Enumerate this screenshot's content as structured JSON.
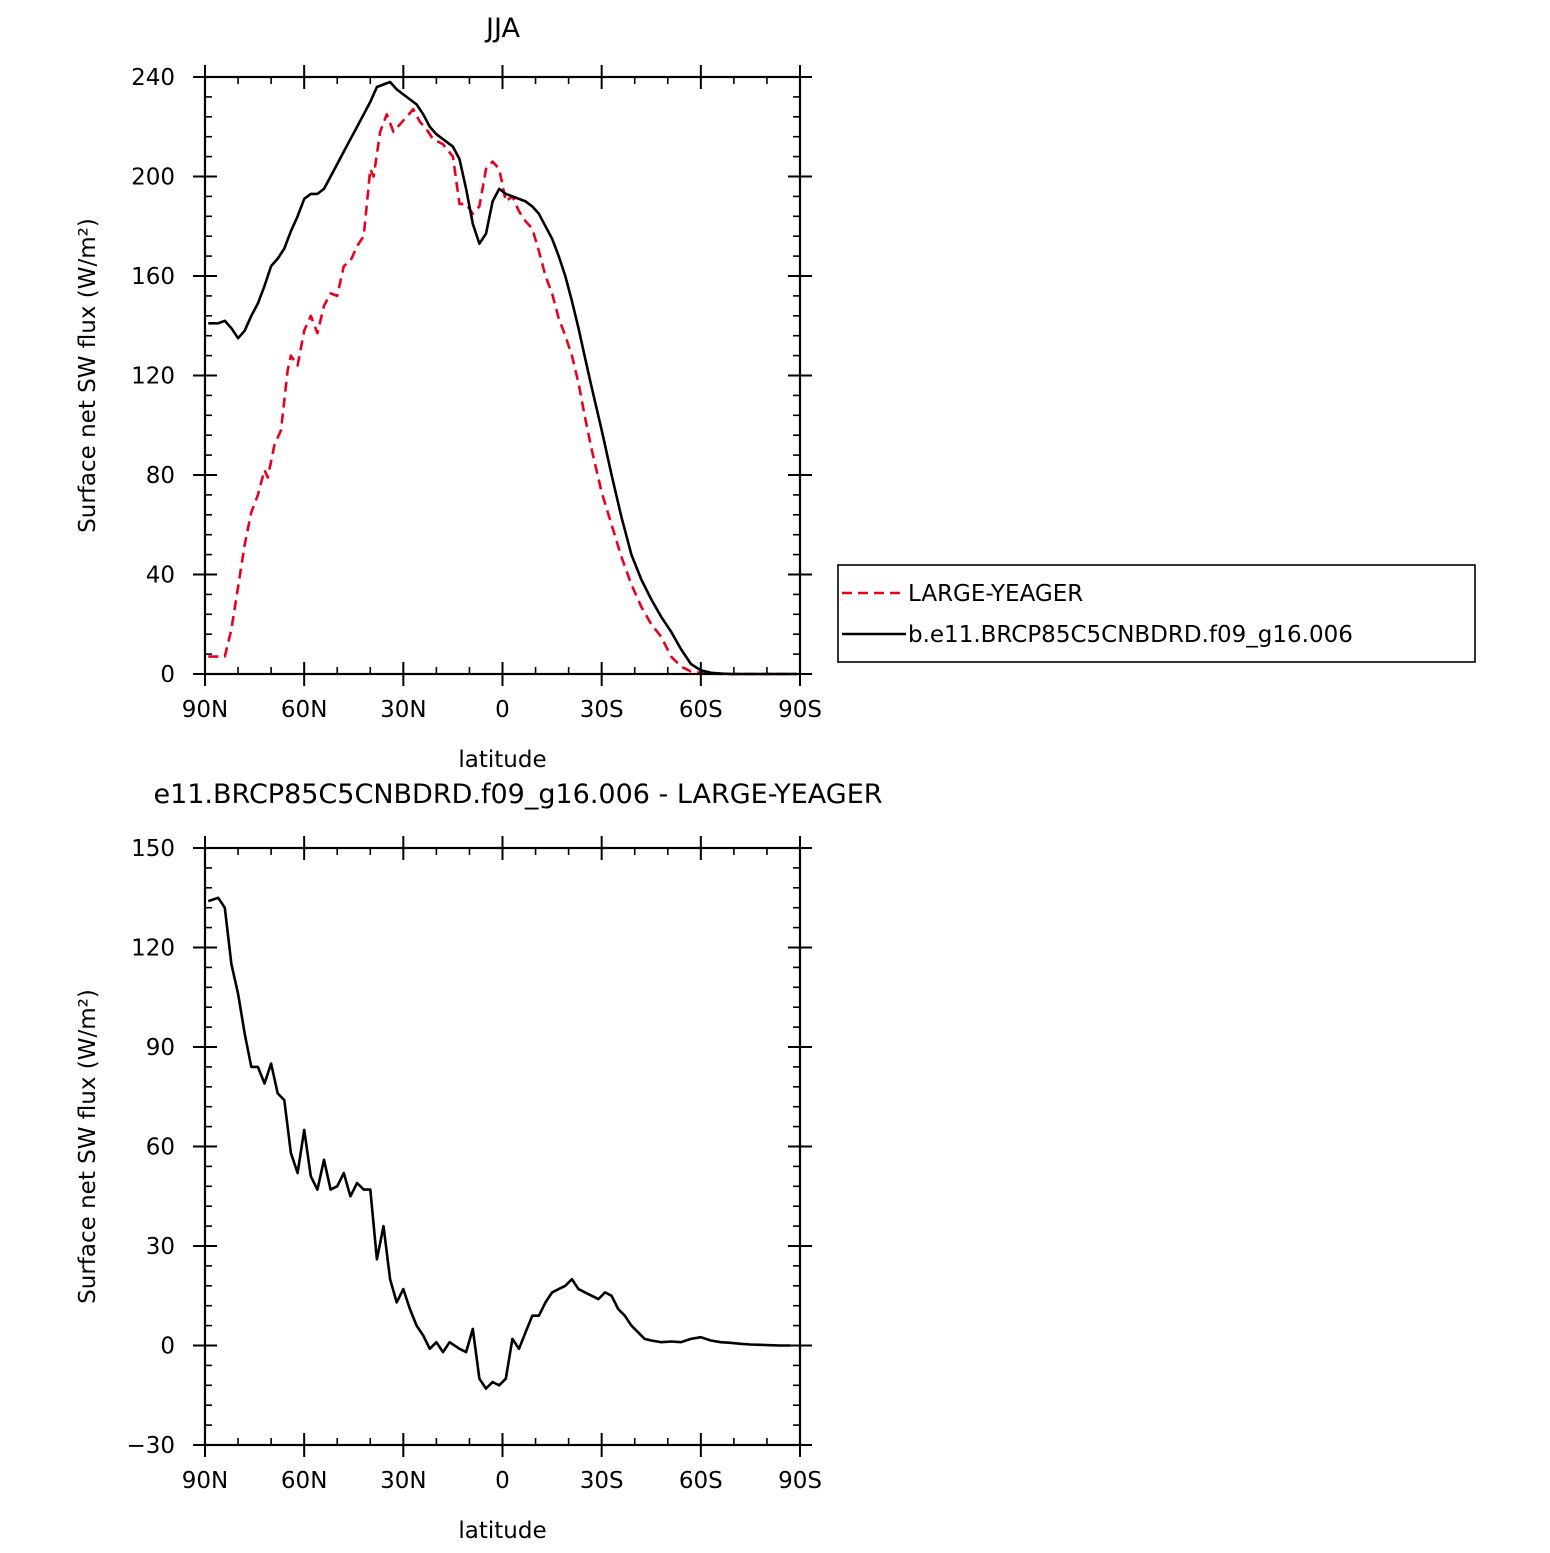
{
  "chart_data": [
    {
      "type": "line",
      "title": "JJA",
      "xlabel": "latitude",
      "ylabel": "Surface net SW flux (W/m²)",
      "xlim": [
        90,
        -90
      ],
      "ylim": [
        0,
        240
      ],
      "x_ticks": [
        90,
        60,
        30,
        0,
        -30,
        -60,
        -90
      ],
      "x_tick_labels": [
        "90N",
        "60N",
        "30N",
        "0",
        "30S",
        "60S",
        "90S"
      ],
      "y_ticks": [
        0,
        40,
        80,
        120,
        160,
        200,
        240
      ],
      "y_tick_labels": [
        "0",
        "40",
        "80",
        "120",
        "160",
        "200",
        "240"
      ],
      "legend_position": "right",
      "series": [
        {
          "name": "LARGE-YEAGER",
          "color": "#e8001c",
          "style": "dashed",
          "x": [
            89,
            86,
            84,
            82,
            80,
            78,
            76,
            74,
            72,
            71,
            69,
            67,
            65,
            64,
            62,
            60,
            58,
            56,
            54,
            52,
            50,
            48,
            46,
            44,
            42,
            40,
            39,
            37,
            35,
            33,
            31,
            29,
            27,
            25,
            23,
            21,
            18,
            15,
            13,
            11,
            9,
            7,
            5,
            3,
            1,
            -1,
            -3,
            -5,
            -7,
            -9,
            -11,
            -13,
            -15,
            -17,
            -19,
            -21,
            -23,
            -25,
            -27,
            -30,
            -33,
            -36,
            -39,
            -42,
            -45,
            -48,
            -51,
            -54,
            -57,
            -60,
            -63,
            -66,
            -69,
            -72,
            -75,
            -78,
            -81,
            -84,
            -87,
            -89
          ],
          "y": [
            7,
            7,
            7,
            18,
            35,
            52,
            65,
            72,
            82,
            79,
            92,
            98,
            122,
            128,
            124,
            138,
            144,
            137,
            148,
            153,
            152,
            164,
            166,
            172,
            176,
            203,
            200,
            218,
            225,
            218,
            221,
            224,
            227,
            222,
            219,
            215,
            213,
            208,
            189,
            189,
            185,
            188,
            203,
            206,
            203,
            190,
            192,
            186,
            182,
            179,
            170,
            160,
            153,
            143,
            136,
            128,
            117,
            103,
            90,
            73,
            60,
            47,
            36,
            27,
            20,
            15,
            7,
            3,
            1,
            0.5,
            0.2,
            0,
            0,
            0,
            0,
            0,
            0,
            0,
            0,
            0
          ]
        },
        {
          "name": "b.e11.BRCP85C5CNBDRD.f09_g16.006",
          "color": "#000000",
          "style": "solid",
          "x": [
            89,
            86,
            84,
            82,
            80,
            78,
            76,
            74,
            72,
            70,
            68,
            66,
            64,
            62,
            60,
            58,
            56,
            54,
            52,
            50,
            48,
            46,
            44,
            42,
            40,
            38,
            36,
            34,
            32,
            30,
            28,
            26,
            24,
            22,
            20,
            18,
            15,
            13,
            11,
            9,
            7,
            5,
            3,
            1,
            -1,
            -3,
            -5,
            -7,
            -9,
            -11,
            -13,
            -15,
            -17,
            -19,
            -21,
            -23,
            -25,
            -27,
            -30,
            -33,
            -36,
            -39,
            -42,
            -45,
            -48,
            -51,
            -54,
            -57,
            -60,
            -63,
            -66,
            -69,
            -72,
            -75,
            -78,
            -81,
            -84,
            -87,
            -89
          ],
          "y": [
            141,
            141,
            142,
            139,
            135,
            138,
            144,
            149,
            156,
            164,
            167,
            171,
            178,
            184,
            191,
            193,
            193,
            195,
            200,
            205,
            210,
            215,
            220,
            225,
            230,
            236,
            237,
            238,
            235,
            233,
            231,
            229,
            225,
            220,
            217,
            215,
            212,
            207,
            195,
            181,
            173,
            177,
            190,
            195,
            193,
            192,
            191,
            190,
            188,
            185,
            180,
            175,
            168,
            160,
            150,
            139,
            127,
            115,
            98,
            80,
            63,
            48,
            38,
            30,
            23,
            17,
            10,
            4,
            1.5,
            0.5,
            0.2,
            0,
            0,
            0,
            0,
            0,
            0,
            0,
            0
          ]
        }
      ]
    },
    {
      "type": "line",
      "title": "e11.BRCP85C5CNBDRD.f09_g16.006 - LARGE-YEAGER",
      "xlabel": "latitude",
      "ylabel": "Surface net SW flux (W/m²)",
      "xlim": [
        90,
        -90
      ],
      "ylim": [
        -30,
        150
      ],
      "x_ticks": [
        90,
        60,
        30,
        0,
        -30,
        -60,
        -90
      ],
      "x_tick_labels": [
        "90N",
        "60N",
        "30N",
        "0",
        "30S",
        "60S",
        "90S"
      ],
      "y_ticks": [
        -30,
        0,
        30,
        60,
        90,
        120,
        150
      ],
      "y_tick_labels": [
        "−30",
        "0",
        "30",
        "60",
        "90",
        "120",
        "150"
      ],
      "series": [
        {
          "color": "#000000",
          "style": "solid",
          "x": [
            89,
            86,
            84,
            82,
            80,
            78,
            76,
            74,
            72,
            70,
            68,
            66,
            64,
            62,
            60,
            58,
            56,
            54,
            52,
            50,
            48,
            46,
            44,
            42,
            40,
            38,
            36,
            34,
            32,
            30,
            28,
            26,
            24,
            22,
            20,
            18,
            16,
            13,
            11,
            9,
            7,
            5,
            3,
            1,
            -1,
            -3,
            -5,
            -7,
            -9,
            -11,
            -13,
            -15,
            -17,
            -19,
            -21,
            -23,
            -25,
            -27,
            -29,
            -31,
            -33,
            -35,
            -37,
            -39,
            -41,
            -43,
            -45,
            -48,
            -51,
            -54,
            -57,
            -60,
            -63,
            -66,
            -69,
            -72,
            -75,
            -78,
            -81,
            -84,
            -87
          ],
          "y": [
            134,
            135,
            132,
            115,
            106,
            94,
            84,
            84,
            79,
            85,
            76,
            74,
            58,
            52,
            65,
            51,
            47,
            56,
            47,
            48,
            52,
            45,
            49,
            47,
            47,
            26,
            36,
            20,
            13,
            17,
            11,
            6,
            3,
            -1,
            1,
            -2,
            1,
            -1,
            -2,
            5,
            -10,
            -13,
            -11,
            -12,
            -10,
            2,
            -1,
            4,
            9,
            9,
            13,
            16,
            17,
            18,
            20,
            17,
            16,
            15,
            14,
            16,
            15,
            11,
            9,
            6,
            4,
            2,
            1.5,
            1,
            1.2,
            1,
            2,
            2.5,
            1.5,
            1,
            0.8,
            0.5,
            0.3,
            0.2,
            0.1,
            0,
            0
          ]
        }
      ]
    }
  ]
}
